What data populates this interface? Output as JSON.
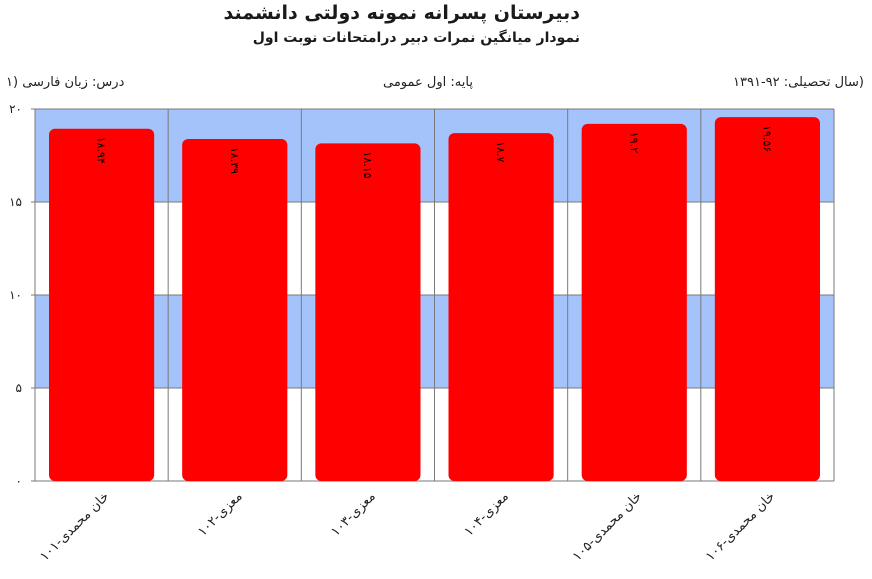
{
  "header": {
    "title": "دبیرستان پسرانه نمونه دولتی دانشمند",
    "subtitle": "نمودار میانگین نمرات دبیر درامتحانات نوبت اول"
  },
  "info": {
    "year": "(سال تحصیلی: ۹۲-۱۳۹۱",
    "grade": "پایه: اول عمومی",
    "course": "درس: زبان فارسی  (۱"
  },
  "colors": {
    "bar": "#ff0000",
    "band": "#a4c3fb",
    "grid": "#7a7a7a"
  },
  "chart_data": {
    "type": "bar",
    "categories": [
      "خان محمدی-۱۰۱",
      "معزی-۱۰۲",
      "معزی-۱۰۳",
      "معزی-۱۰۴",
      "خان محمدی-۱۰۵",
      "خان محمدی-۱۰۶"
    ],
    "values": [
      18.94,
      18.39,
      18.15,
      18.7,
      19.2,
      19.56
    ],
    "data_labels": [
      "۱۸.۹۴",
      "۱۸.۳۹",
      "۱۸.۱۵",
      "۱۸.۷",
      "۱۹.۲",
      "۱۹.۵۶"
    ],
    "yticks": [
      0,
      5,
      10,
      15,
      20
    ],
    "ytick_labels": [
      "۰",
      "۵",
      "۱۰",
      "۱۵",
      "۲۰"
    ],
    "ylim": [
      0,
      20
    ],
    "grid": true
  }
}
